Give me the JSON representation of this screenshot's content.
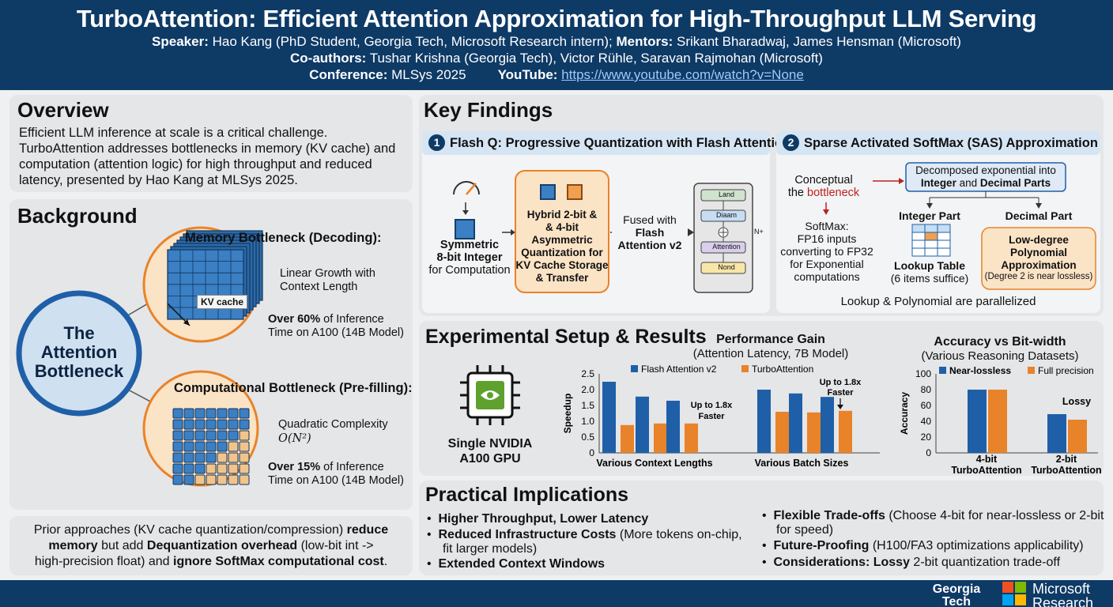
{
  "header": {
    "title": "TurboAttention: Efficient Attention Approximation for High-Throughput LLM Serving",
    "speaker_label": "Speaker:",
    "speaker": " Hao Kang (PhD Student, Georgia Tech, Microsoft Research intern);",
    "mentors_label": " Mentors:",
    "mentors": " Srikant Bharadwaj, James Hensman (Microsoft)",
    "coauthors_label": "Co-authors:",
    "coauthors": " Tushar Krishna (Georgia Tech), Victor Rühle, Saravan Rajmohan (Microsoft)",
    "conference_label": "Conference:",
    "conference": " MLSys 2025",
    "youtube_label": "YouTube:",
    "youtube_url": "https://www.youtube.com/watch?v=None"
  },
  "overview": {
    "title": "Overview",
    "lines": [
      "Efficient LLM inference at scale is a critical challenge.",
      "TurboAttention addresses bottlenecks in memory (KV cache) and",
      "computation (attention logic) for high throughput and reduced",
      "latency, presented by Hao Kang at MLSys 2025."
    ]
  },
  "background": {
    "title": "Background",
    "center": [
      "The",
      "Attention",
      "Bottleneck"
    ],
    "memory": {
      "title": "Memory Bottleneck (Decoding):",
      "kv_label": "KV cache",
      "desc": [
        "Linear Growth with",
        "Context Length"
      ],
      "stat_bold": "Over 60%",
      "stat_rest": " of Inference",
      "stat2": "Time on A100 (14B Model)"
    },
    "compute": {
      "title": "Computational Bottleneck (Pre-filling):",
      "desc": "Quadratic Complexity",
      "formula": "O(N²)",
      "stat_bold": "Over 15%",
      "stat_rest": " of Inference",
      "stat2": "Time on A100 (14B Model)"
    }
  },
  "prior": {
    "l1a": "Prior approaches (KV cache quantization/compression) ",
    "l1b": "reduce",
    "l2a": "memory",
    "l2b": " but add ",
    "l2c": "Dequantization overhead",
    "l2d": " (low-bit int ->",
    "l3a": "high-precision float) and ",
    "l3b": "ignore SoftMax computational cost",
    "l3c": "."
  },
  "findings": {
    "title": "Key Findings",
    "flashq": {
      "num": "1",
      "title": "Flash Q: Progressive Quantization with Flash Attention",
      "sym": [
        "Symmetric",
        "8-bit Integer",
        "for Computation"
      ],
      "hybrid": [
        "Hybrid 2-bit &",
        "& 4-bit",
        "Asymmetric",
        "Quantization for",
        "KV Cache Storage",
        "& Transfer"
      ],
      "fused": [
        "Fused with",
        "Flash",
        "Attention v2"
      ],
      "blocks": [
        "Land",
        "Diaam",
        "Attention",
        "Nond"
      ],
      "nplus": "N+"
    },
    "sas": {
      "num": "2",
      "title": "Sparse Activated SoftMax (SAS) Approximation",
      "conceptual": "Conceptual",
      "the": "the ",
      "bottleneck": "bottleneck",
      "softmax": [
        "SoftMax:",
        "FP16 inputs",
        "converting to FP32",
        "for Exponential",
        "computations"
      ],
      "decomp_a": "Decomposed exponential into",
      "decomp_b1": "Integer",
      "decomp_b2": " and ",
      "decomp_b3": "Decimal Parts",
      "integer": "Integer Part",
      "decimal": "Decimal Part",
      "lookup": "Lookup Table",
      "lookup2": "(6 items suffice)",
      "poly": [
        "Low-degree",
        "Polynomial",
        "Approximation"
      ],
      "poly2": "(Degree 2 is near lossless)",
      "parallel": "Lookup & Polynomial are parallelized"
    }
  },
  "experiment": {
    "title": "Experimental Setup & Results",
    "gpu": [
      "Single NVIDIA",
      "A100 GPU"
    ]
  },
  "chart_data": [
    {
      "type": "bar",
      "title": "Performance Gain",
      "subtitle": "(Attention Latency, 7B Model)",
      "ylabel": "Speedup",
      "ylim": [
        0,
        2.5
      ],
      "yticks": [
        "2.5",
        "2.0",
        "1.5",
        "1.0",
        "0.5",
        "0"
      ],
      "groups": [
        "Various Context Lengths",
        "Various Batch Sizes"
      ],
      "series": [
        {
          "name": "Flash Attention v2",
          "color": "#1f5fa8",
          "values": [
            2.25,
            1.78,
            1.65,
            2.0,
            1.88,
            1.77
          ]
        },
        {
          "name": "TurboAttention",
          "color": "#e8832a",
          "values": [
            0.88,
            0.93,
            0.93,
            1.3,
            1.28,
            1.33
          ]
        }
      ],
      "annotations": [
        [
          "Up to 1.8x",
          "Faster"
        ],
        [
          "Up to 1.8x",
          "Faster"
        ]
      ]
    },
    {
      "type": "bar",
      "title": "Accuracy vs Bit-width",
      "subtitle": "(Various Reasoning Datasets)",
      "ylabel": "Accuracy",
      "ylim": [
        0,
        100
      ],
      "yticks": [
        "100",
        "80",
        "60",
        "40",
        "20",
        "0"
      ],
      "categories": [
        [
          "4-bit",
          "TurboAttention"
        ],
        [
          "2-bit",
          "TurboAttention"
        ]
      ],
      "series": [
        {
          "name": "Near-lossless",
          "color": "#1f5fa8",
          "values": [
            80,
            49
          ]
        },
        {
          "name": "Full precision",
          "color": "#e8832a",
          "values": [
            80,
            42
          ]
        }
      ],
      "annotations": [
        "Lossy"
      ]
    }
  ],
  "implications": {
    "title": "Practical Implications",
    "left": [
      {
        "bold": "Higher Throughput, Lower Latency",
        "rest": ""
      },
      {
        "bold": "Reduced Infrastructure Costs",
        "rest": " (More tokens on-chip,",
        "line2": "fit larger models)"
      },
      {
        "bold": "Extended Context Windows",
        "rest": ""
      }
    ],
    "right": [
      {
        "bold": "Flexible Trade-offs",
        "rest": " (Choose 4-bit for near-lossless or 2-bit",
        "line2": "for speed)"
      },
      {
        "bold": "Future-Proofing",
        "rest": " (H100/FA3 optimizations applicability)"
      },
      {
        "bold": "Considerations: Lossy",
        "rest": " 2-bit quantization trade-off"
      }
    ]
  },
  "footer": {
    "gt": [
      "Georgia",
      "Tech"
    ],
    "ms": [
      "Microsoft",
      "Research"
    ]
  },
  "colors": {
    "navy": "#0e3a66",
    "blue": "#1f5fa8",
    "orange": "#e8832a",
    "card": "#e5e6e8"
  }
}
